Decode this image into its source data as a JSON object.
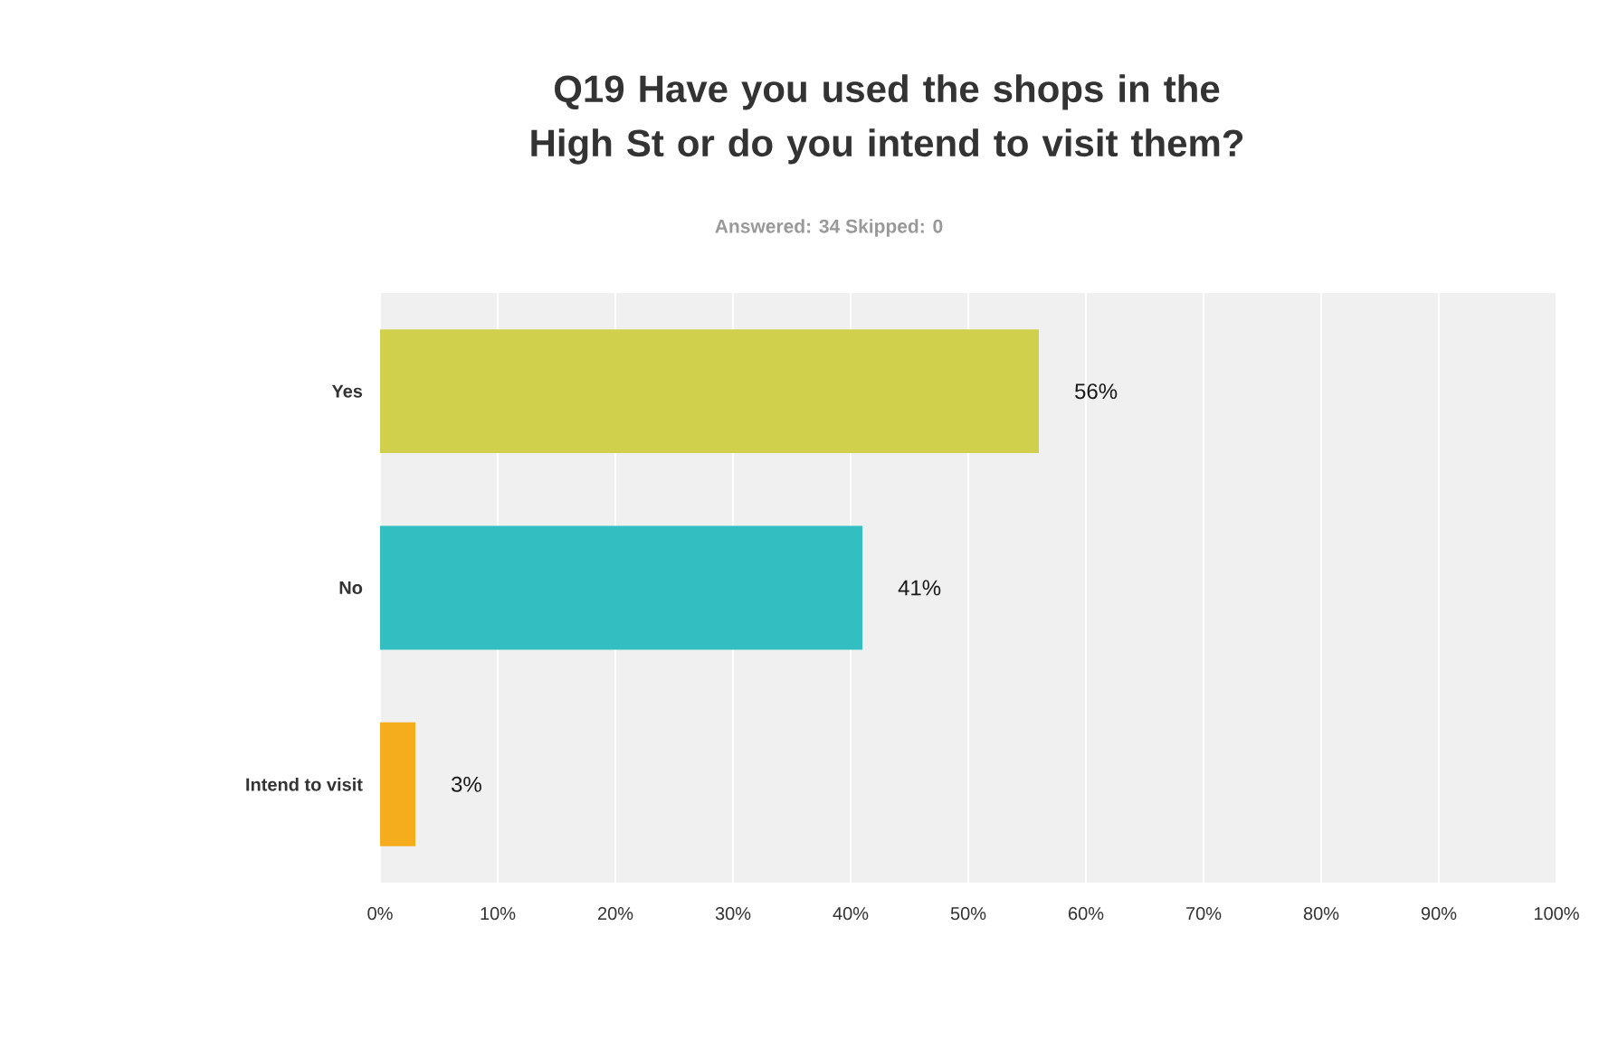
{
  "chart_data": {
    "type": "bar",
    "orientation": "horizontal",
    "title": "Q19 Have you used the shops in the High St or do you intend to visit them?",
    "subtitle": "Answered: 34    Skipped: 0",
    "categories": [
      "Yes",
      "No",
      "Intend to visit"
    ],
    "values": [
      56,
      41,
      3
    ],
    "colors": [
      "#d0d04c",
      "#33bfc1",
      "#f5ad1e"
    ],
    "value_labels": [
      "56%",
      "41%",
      "3%"
    ],
    "xlim": [
      0,
      100
    ],
    "xticks": [
      {
        "value": 0,
        "label": "0%"
      },
      {
        "value": 10,
        "label": "10%"
      },
      {
        "value": 20,
        "label": "20%"
      },
      {
        "value": 30,
        "label": "30%"
      },
      {
        "value": 40,
        "label": "40%"
      },
      {
        "value": 50,
        "label": "50%"
      },
      {
        "value": 60,
        "label": "60%"
      },
      {
        "value": 70,
        "label": "70%"
      },
      {
        "value": 80,
        "label": "80%"
      },
      {
        "value": 90,
        "label": "90%"
      },
      {
        "value": 100,
        "label": "100%"
      }
    ],
    "grid": "x"
  }
}
